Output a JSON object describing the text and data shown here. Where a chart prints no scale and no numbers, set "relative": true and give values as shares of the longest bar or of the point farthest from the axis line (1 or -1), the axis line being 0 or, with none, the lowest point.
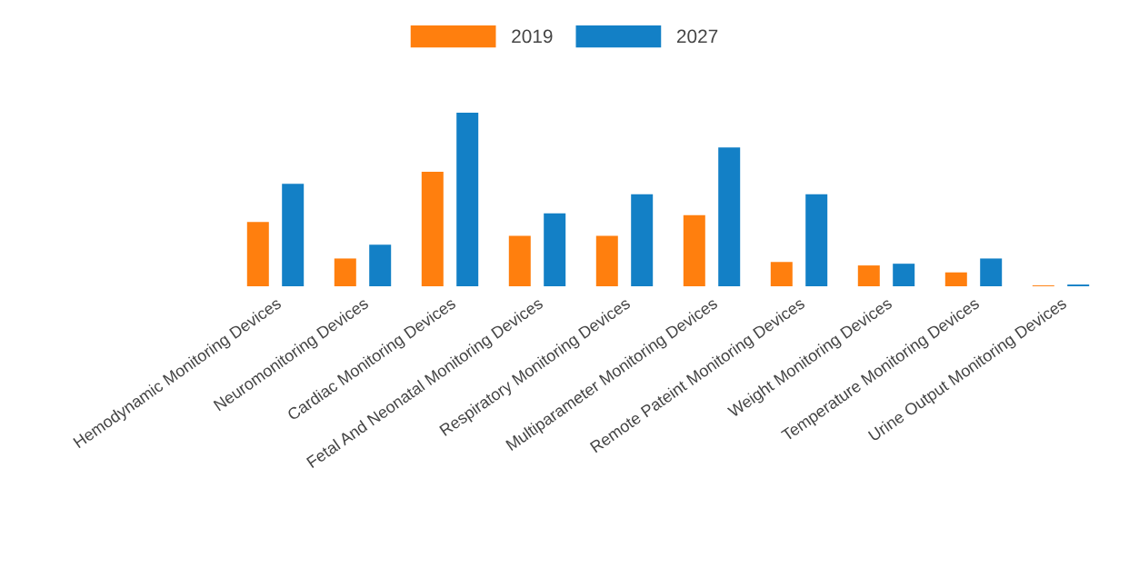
{
  "chart_data": {
    "type": "bar",
    "relative": true,
    "legend": "top",
    "grid": false,
    "categories": [
      "Hemodynamic Monitoring Devices",
      "Neuromonitoring Devices",
      "Cardiac Monitoring Devices",
      "Fetal And Neonatal Monitoring Devices",
      "Respiratory Monitoring Devices",
      "Multiparameter Monitoring Devices",
      "Remote Pateint Monitoring Devices",
      "Weight Monitoring Devices",
      "Temperature Monitoring Devices",
      "Urine Output Monitoring Devices"
    ],
    "series": [
      {
        "name": "2019",
        "color": "#ff7f0e",
        "values": [
          0.37,
          0.16,
          0.66,
          0.29,
          0.29,
          0.41,
          0.14,
          0.12,
          0.08,
          0.005
        ]
      },
      {
        "name": "2027",
        "color": "#1380c6",
        "values": [
          0.59,
          0.24,
          1,
          0.42,
          0.53,
          0.8,
          0.53,
          0.13,
          0.16,
          0.01
        ]
      }
    ]
  }
}
